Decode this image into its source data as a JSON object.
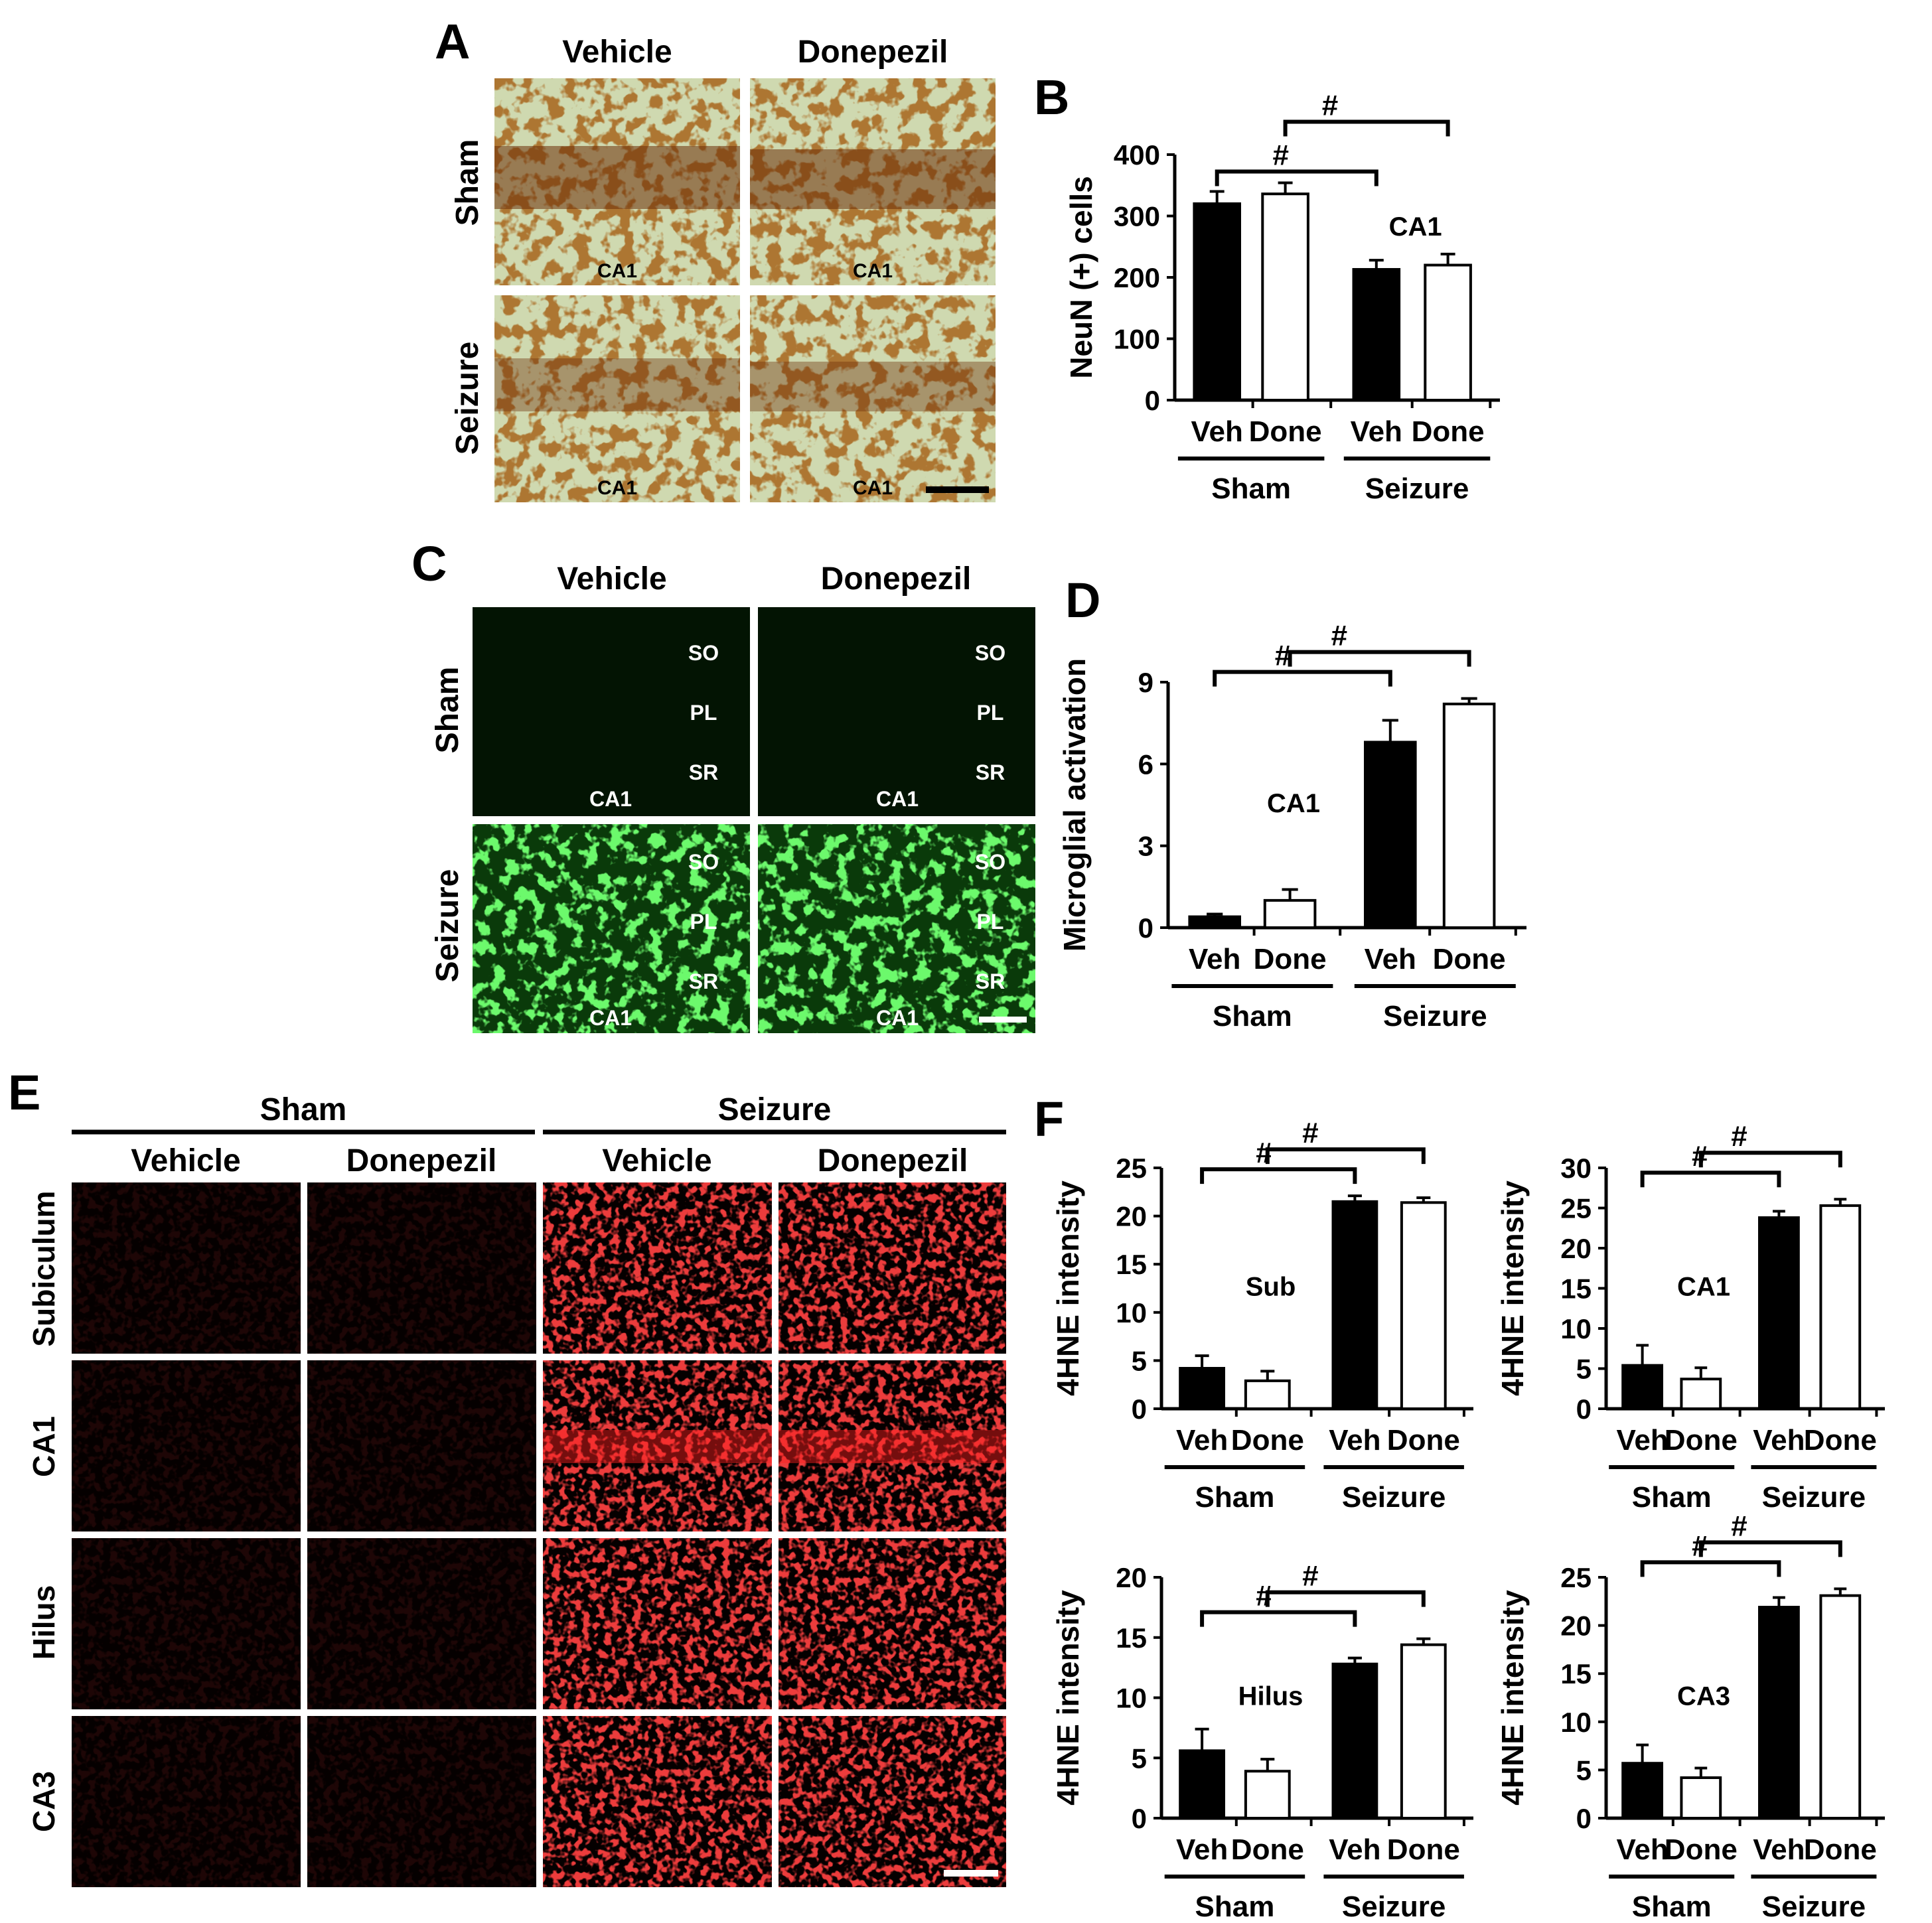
{
  "figure": {
    "panels": {
      "A": {
        "letter": "A",
        "col_labels": [
          "Vehicle",
          "Donepezil"
        ],
        "row_labels": [
          "Sham",
          "Seizure"
        ],
        "region_label": "CA1"
      },
      "B": {
        "letter": "B"
      },
      "C": {
        "letter": "C",
        "col_labels": [
          "Vehicle",
          "Donepezil"
        ],
        "row_labels": [
          "Sham",
          "Seizure"
        ],
        "layer_labels": [
          "SO",
          "PL",
          "SR"
        ],
        "region_label": "CA1"
      },
      "D": {
        "letter": "D"
      },
      "E": {
        "letter": "E",
        "group_labels": [
          "Sham",
          "Seizure"
        ],
        "col_labels": [
          "Vehicle",
          "Donepezil",
          "Vehicle",
          "Donepezil"
        ],
        "row_labels": [
          "Subiculum",
          "CA1",
          "Hilus",
          "CA3"
        ]
      },
      "F": {
        "letter": "F"
      }
    },
    "colors": {
      "dab_background": "#cfd9b0",
      "dab_stain": "#6b2d08",
      "iba1_green": "#22dd22",
      "hne_red": "#e01010",
      "bar_filled": "#000000",
      "bar_open": "#ffffff"
    }
  },
  "chart_data": [
    {
      "id": "B",
      "type": "bar",
      "ylabel": "NeuN (+) cells",
      "ylim": [
        0,
        400
      ],
      "yticks": [
        0,
        100,
        200,
        300,
        400
      ],
      "region": "CA1",
      "categories": [
        "Veh",
        "Done",
        "Veh",
        "Done"
      ],
      "groups": [
        "Sham",
        "Seizure"
      ],
      "values": [
        320,
        336,
        213,
        220
      ],
      "errors": [
        20,
        18,
        15,
        18
      ],
      "significance": [
        "#",
        "#"
      ]
    },
    {
      "id": "D",
      "type": "bar",
      "ylabel": "Microglial activation",
      "ylim": [
        0,
        9
      ],
      "yticks": [
        0,
        3,
        6,
        9
      ],
      "region": "CA1",
      "categories": [
        "Veh",
        "Done",
        "Veh",
        "Done"
      ],
      "groups": [
        "Sham",
        "Seizure"
      ],
      "values": [
        0.4,
        1.0,
        6.8,
        8.2
      ],
      "errors": [
        0.1,
        0.4,
        0.8,
        0.2
      ],
      "significance": [
        "#",
        "#"
      ]
    },
    {
      "id": "F1",
      "type": "bar",
      "ylabel": "4HNE intensity",
      "ylim": [
        0,
        25
      ],
      "yticks": [
        0,
        5,
        10,
        15,
        20,
        25
      ],
      "region": "Sub",
      "categories": [
        "Veh",
        "Done",
        "Veh",
        "Done"
      ],
      "groups": [
        "Sham",
        "Seizure"
      ],
      "values": [
        4.2,
        2.9,
        21.5,
        21.4
      ],
      "errors": [
        1.3,
        1.0,
        0.6,
        0.5
      ],
      "significance": [
        "#",
        "#"
      ]
    },
    {
      "id": "F2",
      "type": "bar",
      "ylabel": "4HNE intensity",
      "ylim": [
        0,
        30
      ],
      "yticks": [
        0,
        5,
        10,
        15,
        20,
        25,
        30
      ],
      "region": "CA1",
      "categories": [
        "Veh",
        "Done",
        "Veh",
        "Done"
      ],
      "groups": [
        "Sham",
        "Seizure"
      ],
      "values": [
        5.4,
        3.7,
        23.8,
        25.3
      ],
      "errors": [
        2.5,
        1.4,
        0.8,
        0.8
      ],
      "significance": [
        "#",
        "#"
      ]
    },
    {
      "id": "F3",
      "type": "bar",
      "ylabel": "4HNE intensity",
      "ylim": [
        0,
        20
      ],
      "yticks": [
        0,
        5,
        10,
        15,
        20
      ],
      "region": "Hilus",
      "categories": [
        "Veh",
        "Done",
        "Veh",
        "Done"
      ],
      "groups": [
        "Sham",
        "Seizure"
      ],
      "values": [
        5.6,
        3.9,
        12.8,
        14.4
      ],
      "errors": [
        1.8,
        1.0,
        0.5,
        0.5
      ],
      "significance": [
        "#",
        "#"
      ]
    },
    {
      "id": "F4",
      "type": "bar",
      "ylabel": "4HNE intensity",
      "ylim": [
        0,
        25
      ],
      "yticks": [
        0,
        5,
        10,
        15,
        20,
        25
      ],
      "region": "CA3",
      "categories": [
        "Veh",
        "Done",
        "Veh",
        "Done"
      ],
      "groups": [
        "Sham",
        "Seizure"
      ],
      "values": [
        5.7,
        4.2,
        21.9,
        23.1
      ],
      "errors": [
        1.9,
        1.0,
        1.0,
        0.7
      ],
      "significance": [
        "#",
        "#"
      ]
    }
  ]
}
